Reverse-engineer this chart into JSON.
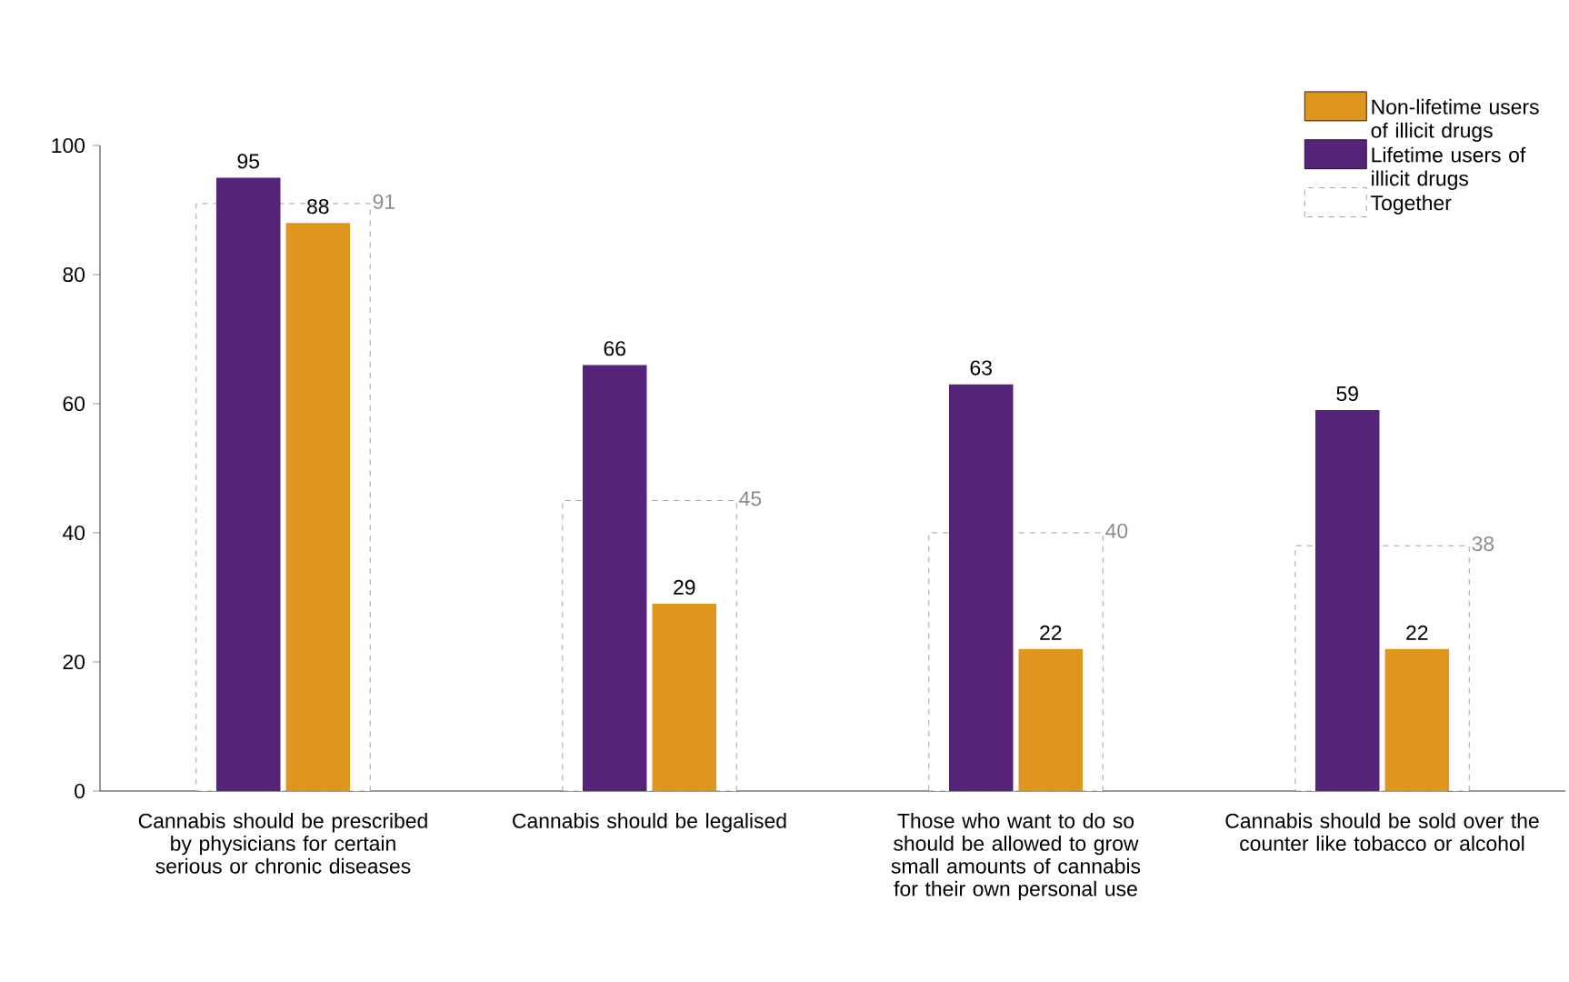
{
  "chart_data": {
    "type": "bar",
    "categories": [
      "Cannabis should be prescribed by physicians for certain serious or chronic diseases",
      "Cannabis should be legalised",
      "Those who want to do so should be allowed to grow small amounts of cannabis for their own personal use",
      "Cannabis should be sold over the counter like tobacco or alcohol"
    ],
    "series": [
      {
        "name": "Non-lifetime users of illicit drugs",
        "color": "#e0961e",
        "values": [
          88,
          29,
          22,
          22
        ]
      },
      {
        "name": "Lifetime users of illicit drugs",
        "color": "#552478",
        "values": [
          95,
          66,
          63,
          59
        ]
      },
      {
        "name": "Together",
        "color": "#8c8c8c",
        "line_style": "dashed",
        "values": [
          91,
          45,
          40,
          38
        ]
      }
    ],
    "ylim": [
      0,
      100
    ],
    "yticks": [
      0,
      20,
      40,
      60,
      80,
      100
    ],
    "data_labels": true,
    "legend": "top right"
  }
}
